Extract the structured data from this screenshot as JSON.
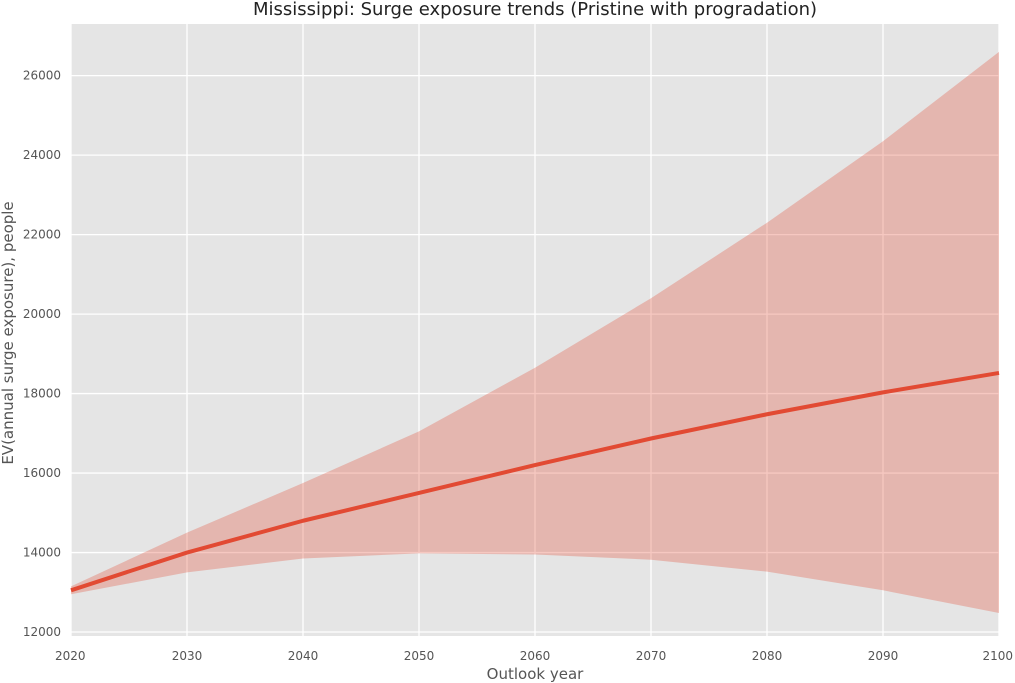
{
  "chart_data": {
    "type": "line",
    "title": "Mississippi: Surge exposure trends (Pristine with progradation)",
    "xlabel": "Outlook year",
    "ylabel": "EV(annual surge exposure), people",
    "xlim": [
      2020,
      2100
    ],
    "ylim": [
      11900,
      27300
    ],
    "xticks": [
      2020,
      2030,
      2040,
      2050,
      2060,
      2070,
      2080,
      2090,
      2100
    ],
    "yticks": [
      12000,
      14000,
      16000,
      18000,
      20000,
      22000,
      24000,
      26000
    ],
    "x": [
      2020,
      2030,
      2040,
      2050,
      2060,
      2070,
      2080,
      2090,
      2100
    ],
    "series": [
      {
        "values": [
          13050,
          14000,
          14800,
          15500,
          16200,
          16870,
          17480,
          18030,
          18520
        ],
        "lower": [
          12950,
          13500,
          13850,
          13980,
          13950,
          13820,
          13520,
          13050,
          12480
        ],
        "upper": [
          13150,
          14500,
          15750,
          17050,
          18650,
          20400,
          22300,
          24350,
          26600
        ]
      }
    ],
    "grid": true,
    "colors": {
      "background": "#e5e5e5",
      "grid": "#ffffff",
      "line": "#e24a33",
      "band": "#e24a33",
      "text": "#555555",
      "title": "#222222"
    }
  }
}
